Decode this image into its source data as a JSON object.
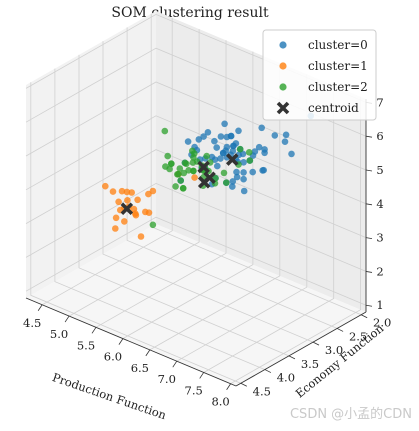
{
  "chart_data": {
    "type": "scatter",
    "projection": "3d",
    "title": "SOM clustering result",
    "xlabel": "Production Function",
    "ylabel": "Economy Function",
    "zlabel": "",
    "xlim": [
      4.2,
      8.1
    ],
    "ylim": [
      1.9,
      4.6
    ],
    "zlim": [
      0.8,
      7.1
    ],
    "x_ticks": [
      "4.5",
      "5.0",
      "5.5",
      "6.0",
      "6.5",
      "7.0",
      "7.5",
      "8.0"
    ],
    "y_ticks": [
      "2.0",
      "2.5",
      "3.0",
      "3.5",
      "4.0",
      "4.5"
    ],
    "z_ticks": [
      "1",
      "2",
      "3",
      "4",
      "5",
      "6",
      "7"
    ],
    "grid": true,
    "legend_position": "top-right",
    "series": [
      {
        "name": "cluster=0",
        "color": "#1f77b4",
        "marker": "circle",
        "points": [
          [
            6.3,
            3.3,
            5.0
          ],
          [
            6.7,
            3.1,
            4.7
          ],
          [
            7.2,
            3.0,
            5.9
          ],
          [
            7.7,
            3.6,
            6.1
          ],
          [
            7.7,
            3.8,
            6.7
          ],
          [
            6.9,
            3.1,
            5.4
          ],
          [
            6.4,
            2.8,
            5.6
          ],
          [
            6.5,
            3.0,
            5.8
          ],
          [
            6.8,
            3.2,
            5.9
          ],
          [
            6.7,
            3.3,
            5.7
          ],
          [
            6.7,
            3.0,
            5.2
          ],
          [
            6.9,
            3.1,
            4.9
          ],
          [
            6.3,
            2.5,
            4.9
          ],
          [
            7.1,
            3.0,
            5.9
          ],
          [
            6.1,
            3.0,
            4.6
          ],
          [
            6.4,
            2.9,
            4.3
          ],
          [
            6.6,
            3.0,
            4.4
          ],
          [
            6.8,
            2.8,
            4.8
          ],
          [
            6.7,
            3.1,
            5.6
          ],
          [
            6.9,
            3.1,
            5.1
          ],
          [
            6.5,
            3.2,
            5.1
          ],
          [
            6.4,
            3.2,
            5.3
          ],
          [
            6.8,
            3.0,
            5.5
          ],
          [
            7.3,
            2.9,
            6.3
          ],
          [
            7.6,
            3.0,
            6.6
          ],
          [
            7.2,
            3.6,
            6.1
          ],
          [
            6.5,
            3.0,
            5.5
          ],
          [
            7.7,
            2.6,
            6.9
          ],
          [
            7.4,
            2.8,
            6.1
          ],
          [
            7.9,
            3.8,
            6.4
          ],
          [
            6.3,
            3.4,
            5.6
          ],
          [
            6.0,
            3.4,
            4.5
          ],
          [
            6.2,
            3.4,
            5.4
          ],
          [
            6.1,
            2.8,
            4.7
          ],
          [
            6.4,
            2.7,
            5.3
          ],
          [
            6.3,
            2.9,
            5.6
          ],
          [
            6.2,
            2.9,
            4.3
          ],
          [
            6.0,
            3.0,
            4.8
          ],
          [
            5.9,
            3.2,
            4.8
          ],
          [
            6.4,
            3.1,
            5.5
          ],
          [
            7.0,
            3.2,
            4.7
          ],
          [
            6.9,
            3.2,
            5.7
          ],
          [
            6.7,
            2.5,
            5.8
          ],
          [
            6.3,
            2.7,
            4.9
          ],
          [
            6.6,
            2.9,
            4.6
          ],
          [
            7.2,
            3.2,
            6.0
          ],
          [
            6.2,
            2.8,
            4.8
          ],
          [
            6.1,
            3.0,
            4.9
          ],
          [
            6.4,
            2.8,
            5.6
          ],
          [
            5.8,
            2.8,
            5.1
          ],
          [
            6.0,
            2.2,
            5.0
          ],
          [
            5.7,
            2.5,
            5.0
          ],
          [
            6.3,
            2.8,
            5.1
          ],
          [
            6.5,
            2.8,
            4.6
          ],
          [
            6.8,
            3.2,
            5.9
          ],
          [
            5.6,
            2.8,
            4.9
          ],
          [
            6.0,
            2.7,
            5.1
          ],
          [
            7.7,
            3.0,
            6.1
          ],
          [
            7.2,
            3.0,
            5.8
          ],
          [
            6.1,
            2.6,
            5.6
          ],
          [
            5.9,
            3.0,
            5.1
          ],
          [
            6.7,
            3.3,
            5.7
          ],
          [
            6.5,
            3.0,
            5.2
          ],
          [
            6.3,
            2.3,
            4.4
          ],
          [
            6.4,
            3.2,
            4.5
          ],
          [
            5.8,
            2.7,
            5.1
          ]
        ]
      },
      {
        "name": "cluster=1",
        "color": "#ff7f0e",
        "marker": "circle",
        "points": [
          [
            4.6,
            3.4,
            3.4
          ],
          [
            4.4,
            2.9,
            2.4
          ],
          [
            4.9,
            3.1,
            2.5
          ],
          [
            5.2,
            3.4,
            3.4
          ],
          [
            5.4,
            3.7,
            3.5
          ],
          [
            4.8,
            3.4,
            2.6
          ],
          [
            5.3,
            3.7,
            3.5
          ],
          [
            5.0,
            3.3,
            3.4
          ],
          [
            5.5,
            3.5,
            3.3
          ],
          [
            5.1,
            3.8,
            3.9
          ],
          [
            5.7,
            3.8,
            3.7
          ],
          [
            5.4,
            3.4,
            3.7
          ],
          [
            4.7,
            3.2,
            2.6
          ],
          [
            5.0,
            3.4,
            3.5
          ],
          [
            4.5,
            2.3,
            2.3
          ],
          [
            5.6,
            3.0,
            4.1
          ],
          [
            5.4,
            3.9,
            3.7
          ],
          [
            5.1,
            3.5,
            3.4
          ],
          [
            5.8,
            4.0,
            3.2
          ],
          [
            5.5,
            4.2,
            3.4
          ],
          [
            4.8,
            3.0,
            2.4
          ],
          [
            5.0,
            3.5,
            3.6
          ],
          [
            5.9,
            3.0,
            4.2
          ],
          [
            5.4,
            3.9,
            3.3
          ]
        ]
      },
      {
        "name": "cluster=2",
        "color": "#2ca02c",
        "marker": "circle",
        "points": [
          [
            5.5,
            2.3,
            4.0
          ],
          [
            5.7,
            2.8,
            4.1
          ],
          [
            4.9,
            2.4,
            3.3
          ],
          [
            5.2,
            2.7,
            3.9
          ],
          [
            5.0,
            2.0,
            3.5
          ],
          [
            6.0,
            2.2,
            4.0
          ],
          [
            5.6,
            2.9,
            3.6
          ],
          [
            5.8,
            2.7,
            4.1
          ],
          [
            5.6,
            2.5,
            3.9
          ],
          [
            5.9,
            3.2,
            4.8
          ],
          [
            6.1,
            2.8,
            4.0
          ],
          [
            6.3,
            2.5,
            4.9
          ],
          [
            5.5,
            2.4,
            3.8
          ],
          [
            5.5,
            2.4,
            3.7
          ],
          [
            5.8,
            2.7,
            3.9
          ],
          [
            5.4,
            3.0,
            4.5
          ],
          [
            6.0,
            3.4,
            4.5
          ],
          [
            6.3,
            2.3,
            4.4
          ],
          [
            5.6,
            3.0,
            4.1
          ],
          [
            5.5,
            2.5,
            4.0
          ],
          [
            5.5,
            2.6,
            4.4
          ],
          [
            5.8,
            2.6,
            4.0
          ],
          [
            5.0,
            2.3,
            3.3
          ],
          [
            5.6,
            2.7,
            4.2
          ],
          [
            5.7,
            3.0,
            4.2
          ],
          [
            5.7,
            2.9,
            4.2
          ],
          [
            6.2,
            2.9,
            4.3
          ],
          [
            5.1,
            2.5,
            3.0
          ],
          [
            5.7,
            2.8,
            4.1
          ],
          [
            4.9,
            2.5,
            4.5
          ],
          [
            5.7,
            2.6,
            3.5
          ],
          [
            5.6,
            2.9,
            3.6
          ],
          [
            6.0,
            2.9,
            4.5
          ],
          [
            5.2,
            2.7,
            3.9
          ],
          [
            4.5,
            2.3,
            1.3
          ],
          [
            5.8,
            2.7,
            4.1
          ],
          [
            5.7,
            2.8,
            4.5
          ],
          [
            6.1,
            2.9,
            4.7
          ],
          [
            6.4,
            2.9,
            4.3
          ],
          [
            5.4,
            2.8,
            3.8
          ],
          [
            5.0,
            2.6,
            3.6
          ],
          [
            6.2,
            2.2,
            4.5
          ],
          [
            6.0,
            2.5,
            4.0
          ],
          [
            5.3,
            2.5,
            3.8
          ]
        ]
      },
      {
        "name": "centroid",
        "color": "#333333",
        "marker": "x",
        "points": [
          [
            6.6,
            3.0,
            5.2
          ],
          [
            5.0,
            3.4,
            3.0
          ],
          [
            5.8,
            2.7,
            4.2
          ],
          [
            5.9,
            2.8,
            3.9
          ],
          [
            6.0,
            2.8,
            4.1
          ]
        ]
      }
    ]
  },
  "watermark": "CSDN @小孟的CDN"
}
